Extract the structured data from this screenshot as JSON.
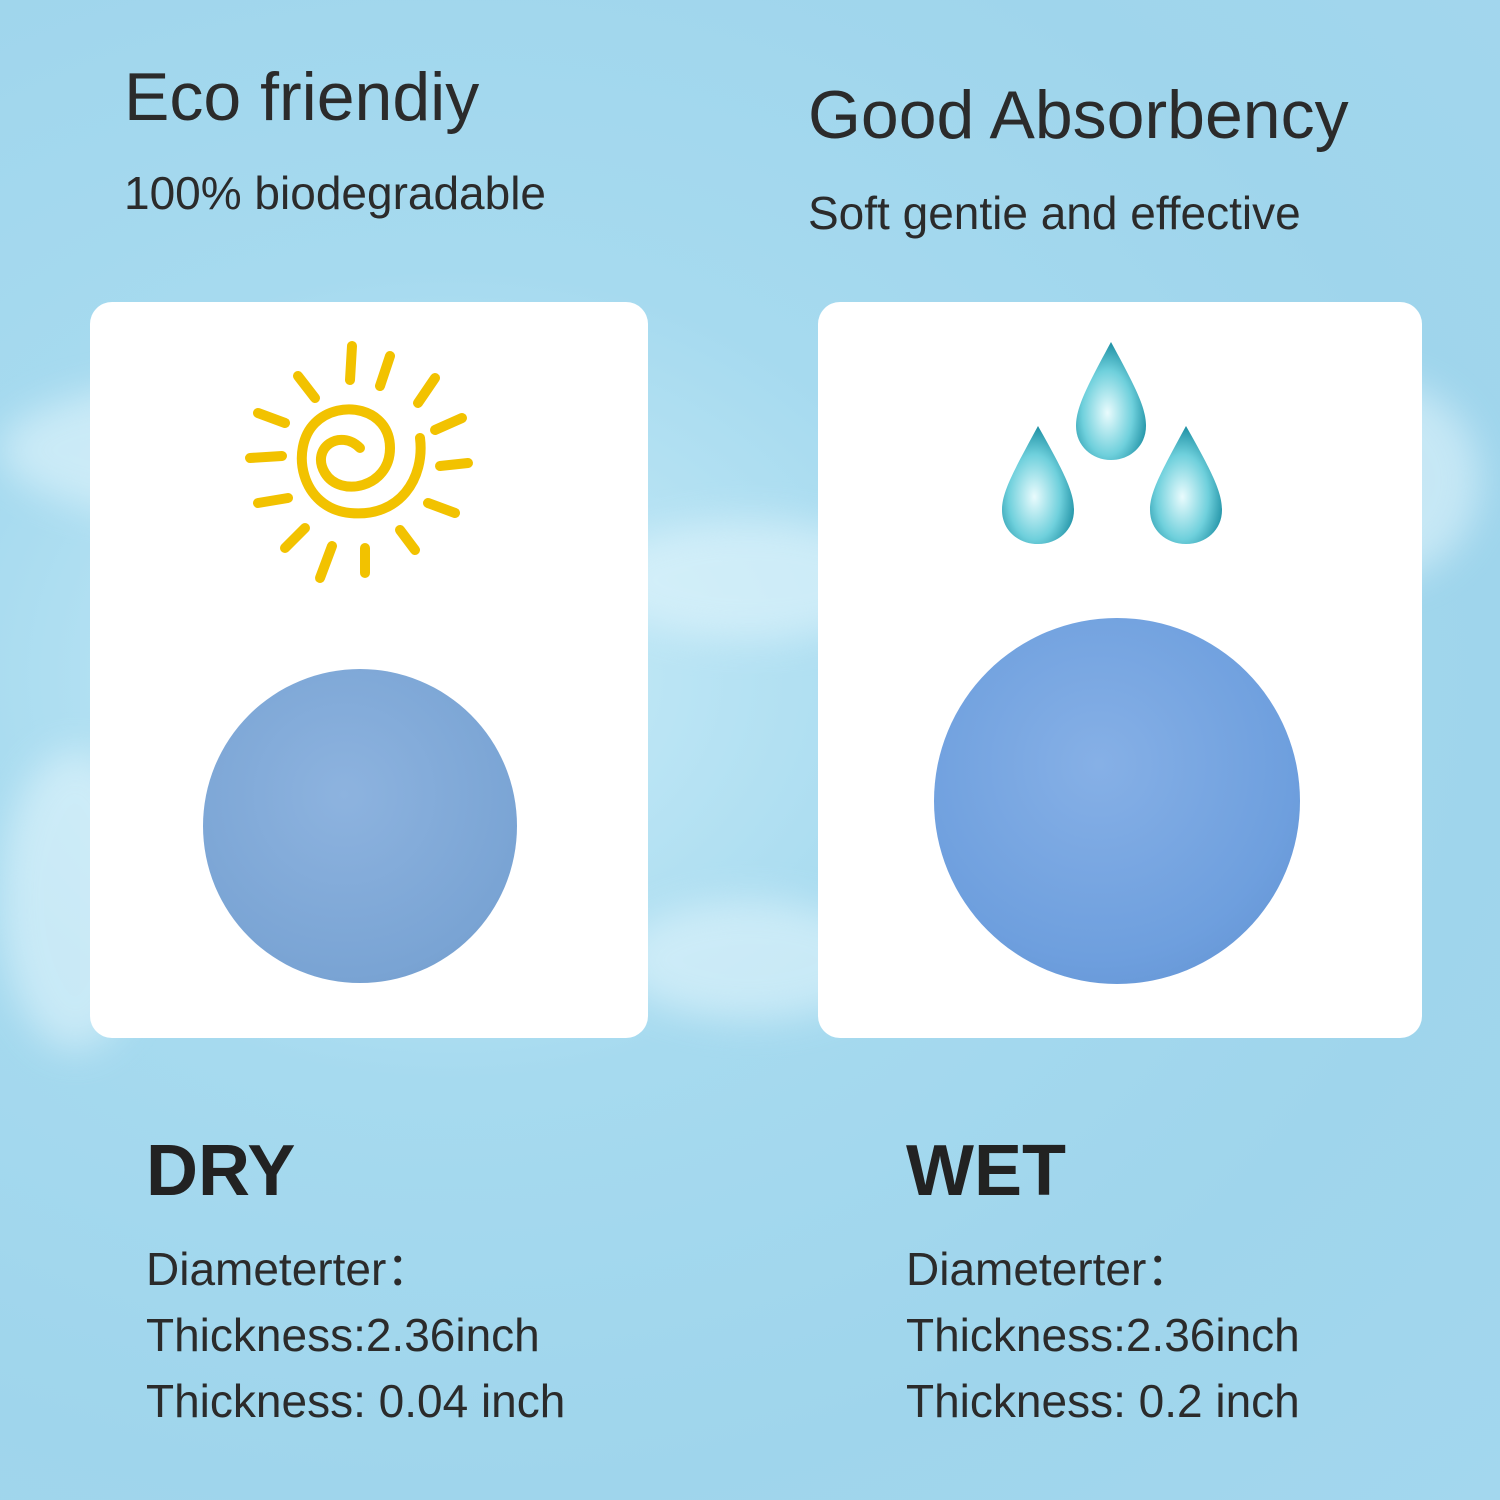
{
  "left": {
    "title": "Eco friendiy",
    "subtitle": "100% biodegradable",
    "icon": "sun-icon",
    "state": "DRY",
    "specs": [
      "Diameterter：",
      "Thickness:2.36inch",
      "Thickness: 0.04 inch"
    ],
    "sponge_color": "#7fa8d8"
  },
  "right": {
    "title": "Good Absorbency",
    "subtitle": "Soft gentie and effective",
    "icon": "water-drops-icon",
    "state": "WET",
    "specs": [
      "Diameterter：",
      "Thickness:2.36inch",
      "Thickness: 0.2 inch"
    ],
    "sponge_color": "#6e9fde"
  },
  "colors": {
    "background": "#a6daef",
    "sun": "#f2c200",
    "drop": "#3bb8c8"
  }
}
